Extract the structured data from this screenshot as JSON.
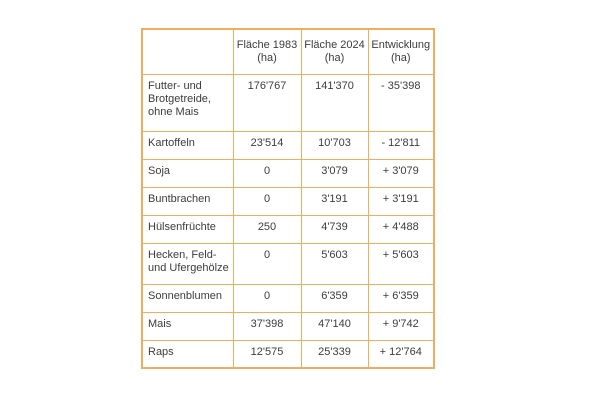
{
  "table": {
    "border_color": "#f1ac5e",
    "text_color": "#3c3c3c",
    "header": {
      "col_empty": "",
      "col_1983": {
        "label": "Fläche 1983",
        "unit": "(ha)"
      },
      "col_2024": {
        "label": "Fläche 2024",
        "unit": "(ha)"
      },
      "col_entwicklung": {
        "label": "Entwicklung",
        "unit": "(ha)"
      }
    },
    "rows": [
      {
        "label": "Futter- und Brotgetreide, ohne Mais",
        "flaeche_1983": "176'767",
        "flaeche_2024": "141'370",
        "entwicklung": "- 35'398"
      },
      {
        "label": "Kartoffeln",
        "flaeche_1983": "23'514",
        "flaeche_2024": "10'703",
        "entwicklung": "- 12'811"
      },
      {
        "label": "Soja",
        "flaeche_1983": "0",
        "flaeche_2024": "3'079",
        "entwicklung": "+ 3'079"
      },
      {
        "label": "Buntbrachen",
        "flaeche_1983": "0",
        "flaeche_2024": "3'191",
        "entwicklung": "+ 3'191"
      },
      {
        "label": "Hülsenfrüchte",
        "flaeche_1983": "250",
        "flaeche_2024": "4'739",
        "entwicklung": "+ 4'488"
      },
      {
        "label": "Hecken, Feld- und Ufergehölze",
        "flaeche_1983": "0",
        "flaeche_2024": "5'603",
        "entwicklung": "+ 5'603"
      },
      {
        "label": "Sonnenblumen",
        "flaeche_1983": "0",
        "flaeche_2024": "6'359",
        "entwicklung": "+ 6'359"
      },
      {
        "label": "Mais",
        "flaeche_1983": "37'398",
        "flaeche_2024": "47'140",
        "entwicklung": "+ 9'742"
      },
      {
        "label": "Raps",
        "flaeche_1983": "12'575",
        "flaeche_2024": "25'339",
        "entwicklung": "+ 12'764"
      }
    ]
  },
  "chart_data": {
    "type": "table",
    "columns": [
      "",
      "Fläche 1983 (ha)",
      "Fläche 2024 (ha)",
      "Entwicklung (ha)"
    ],
    "rows": [
      [
        "Futter- und Brotgetreide, ohne Mais",
        176767,
        141370,
        -35398
      ],
      [
        "Kartoffeln",
        23514,
        10703,
        -12811
      ],
      [
        "Soja",
        0,
        3079,
        3079
      ],
      [
        "Buntbrachen",
        0,
        3191,
        3191
      ],
      [
        "Hülsenfrüchte",
        250,
        4739,
        4488
      ],
      [
        "Hecken, Feld- und Ufergehölze",
        0,
        5603,
        5603
      ],
      [
        "Sonnenblumen",
        0,
        6359,
        6359
      ],
      [
        "Mais",
        37398,
        47140,
        9742
      ],
      [
        "Raps",
        12575,
        25339,
        12764
      ]
    ]
  }
}
